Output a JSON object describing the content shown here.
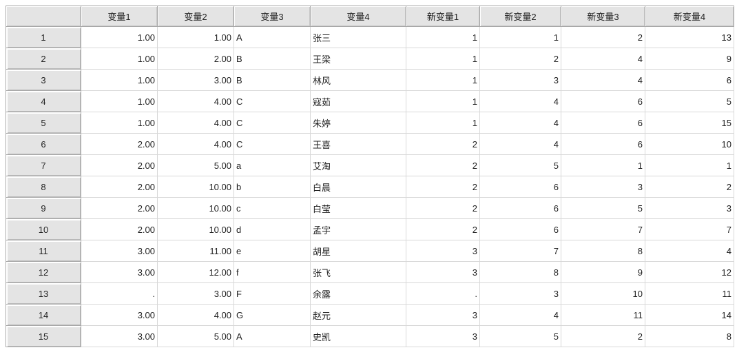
{
  "columns": [
    "",
    "变量1",
    "变量2",
    "变量3",
    "变量4",
    "新变量1",
    "新变量2",
    "新变量3",
    "新变量4"
  ],
  "rows": [
    [
      "1",
      "1.00",
      "1.00",
      "A",
      "张三",
      "1",
      "1",
      "2",
      "13"
    ],
    [
      "2",
      "1.00",
      "2.00",
      "B",
      "王梁",
      "1",
      "2",
      "4",
      "9"
    ],
    [
      "3",
      "1.00",
      "3.00",
      "B",
      "林风",
      "1",
      "3",
      "4",
      "6"
    ],
    [
      "4",
      "1.00",
      "4.00",
      "C",
      "寇茹",
      "1",
      "4",
      "6",
      "5"
    ],
    [
      "5",
      "1.00",
      "4.00",
      "C",
      "朱婷",
      "1",
      "4",
      "6",
      "15"
    ],
    [
      "6",
      "2.00",
      "4.00",
      "C",
      "王喜",
      "2",
      "4",
      "6",
      "10"
    ],
    [
      "7",
      "2.00",
      "5.00",
      "a",
      "艾淘",
      "2",
      "5",
      "1",
      "1"
    ],
    [
      "8",
      "2.00",
      "10.00",
      "b",
      "白晨",
      "2",
      "6",
      "3",
      "2"
    ],
    [
      "9",
      "2.00",
      "10.00",
      "c",
      "白莹",
      "2",
      "6",
      "5",
      "3"
    ],
    [
      "10",
      "2.00",
      "10.00",
      "d",
      "孟宇",
      "2",
      "6",
      "7",
      "7"
    ],
    [
      "11",
      "3.00",
      "11.00",
      "e",
      "胡星",
      "3",
      "7",
      "8",
      "4"
    ],
    [
      "12",
      "3.00",
      "12.00",
      "f",
      "张飞",
      "3",
      "8",
      "9",
      "12"
    ],
    [
      "13",
      ".",
      "3.00",
      "F",
      "余露",
      ".",
      " 3",
      "10",
      "11"
    ],
    [
      "14",
      "3.00",
      "4.00",
      "G",
      "赵元",
      "3",
      "4",
      "11",
      "14"
    ],
    [
      "15",
      "3.00",
      "5.00",
      "A",
      "史凯",
      "3",
      "5",
      "2",
      "8"
    ]
  ]
}
